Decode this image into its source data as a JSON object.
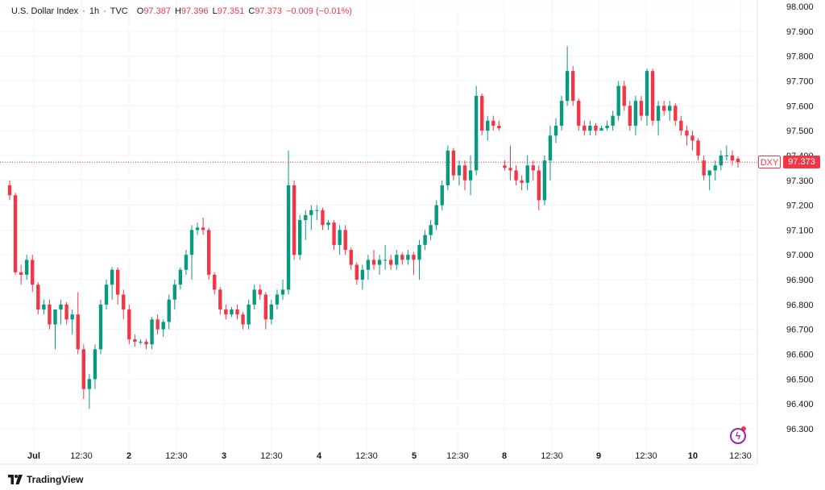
{
  "legend": {
    "symbol": "U.S. Dollar Index",
    "interval": "1h",
    "exchange": "TVC",
    "open_label": "O",
    "open": "97.387",
    "high_label": "H",
    "high": "97.396",
    "low_label": "L",
    "low": "97.351",
    "close_label": "C",
    "close": "97.373",
    "change": "−0.009 (−0.01%)"
  },
  "price_tag": {
    "symbol": "DXY",
    "value": "97.373",
    "numeric": 97.373
  },
  "brand": {
    "name": "TradingView"
  },
  "colors": {
    "up": "#089981",
    "down": "#f23645",
    "grid": "#f0f3fa",
    "text": "#131722"
  },
  "chart_data": {
    "type": "candlestick",
    "ylim": [
      96.22,
      98.0
    ],
    "y_ticks": [
      "98.000",
      "97.900",
      "97.800",
      "97.700",
      "97.600",
      "97.500",
      "97.400",
      "97.300",
      "97.200",
      "97.100",
      "97.000",
      "96.900",
      "96.800",
      "96.700",
      "96.600",
      "96.500",
      "96.400",
      "96.300"
    ],
    "x_ticks": [
      "Jul",
      "12:30",
      "2",
      "12:30",
      "3",
      "12:30",
      "4",
      "12:30",
      "5",
      "12:30",
      "8",
      "12:30",
      "9",
      "12:30",
      "10",
      "12:30"
    ],
    "candles": [
      [
        97.28,
        97.3,
        97.22,
        97.24
      ],
      [
        97.24,
        97.25,
        96.92,
        96.93
      ],
      [
        96.93,
        96.96,
        96.88,
        96.92
      ],
      [
        96.92,
        97.0,
        96.9,
        96.98
      ],
      [
        96.98,
        97.0,
        96.85,
        96.88
      ],
      [
        96.88,
        96.89,
        96.76,
        96.78
      ],
      [
        96.78,
        96.82,
        96.76,
        96.8
      ],
      [
        96.8,
        96.82,
        96.7,
        96.72
      ],
      [
        96.72,
        96.78,
        96.62,
        96.78
      ],
      [
        96.78,
        96.82,
        96.72,
        96.8
      ],
      [
        96.8,
        96.81,
        96.72,
        96.74
      ],
      [
        96.74,
        96.78,
        96.68,
        96.76
      ],
      [
        96.76,
        96.85,
        96.6,
        96.62
      ],
      [
        96.62,
        96.64,
        96.42,
        96.46
      ],
      [
        96.46,
        96.52,
        96.38,
        96.5
      ],
      [
        96.5,
        96.64,
        96.46,
        96.62
      ],
      [
        96.62,
        96.82,
        96.6,
        96.8
      ],
      [
        96.8,
        96.9,
        96.78,
        96.88
      ],
      [
        96.88,
        96.95,
        96.82,
        96.94
      ],
      [
        96.94,
        96.95,
        96.8,
        96.84
      ],
      [
        96.84,
        96.86,
        96.74,
        96.78
      ],
      [
        96.78,
        96.8,
        96.64,
        96.66
      ],
      [
        96.66,
        96.68,
        96.63,
        96.65
      ],
      [
        96.65,
        96.66,
        96.64,
        96.65
      ],
      [
        96.65,
        96.66,
        96.62,
        96.64
      ],
      [
        96.64,
        96.75,
        96.62,
        96.74
      ],
      [
        96.74,
        96.76,
        96.68,
        96.7
      ],
      [
        96.7,
        96.74,
        96.67,
        96.73
      ],
      [
        96.73,
        96.84,
        96.7,
        96.82
      ],
      [
        96.82,
        96.9,
        96.78,
        96.88
      ],
      [
        96.88,
        96.95,
        96.86,
        96.94
      ],
      [
        96.94,
        97.02,
        96.92,
        97.0
      ],
      [
        97.0,
        97.12,
        96.9,
        97.1
      ],
      [
        97.1,
        97.13,
        97.08,
        97.11
      ],
      [
        97.11,
        97.15,
        97.08,
        97.1
      ],
      [
        97.1,
        97.11,
        96.9,
        96.92
      ],
      [
        96.92,
        96.93,
        96.84,
        96.86
      ],
      [
        96.86,
        96.87,
        96.76,
        96.78
      ],
      [
        96.78,
        96.8,
        96.74,
        96.76
      ],
      [
        96.76,
        96.79,
        96.75,
        96.78
      ],
      [
        96.78,
        96.8,
        96.74,
        96.76
      ],
      [
        96.76,
        96.77,
        96.7,
        96.72
      ],
      [
        96.72,
        96.82,
        96.7,
        96.8
      ],
      [
        96.8,
        96.88,
        96.78,
        96.86
      ],
      [
        96.86,
        96.88,
        96.82,
        96.84
      ],
      [
        96.84,
        96.85,
        96.7,
        96.74
      ],
      [
        96.74,
        96.82,
        96.72,
        96.8
      ],
      [
        96.8,
        96.86,
        96.78,
        96.84
      ],
      [
        96.84,
        96.9,
        96.82,
        96.86
      ],
      [
        96.86,
        97.42,
        96.84,
        97.28
      ],
      [
        97.28,
        97.3,
        96.98,
        97.0
      ],
      [
        97.0,
        97.16,
        96.98,
        97.14
      ],
      [
        97.14,
        97.18,
        97.06,
        97.16
      ],
      [
        97.16,
        97.2,
        97.1,
        97.18
      ],
      [
        97.18,
        97.2,
        97.14,
        97.18
      ],
      [
        97.18,
        97.19,
        97.1,
        97.12
      ],
      [
        97.12,
        97.14,
        97.1,
        97.13
      ],
      [
        97.13,
        97.14,
        97.02,
        97.04
      ],
      [
        97.04,
        97.12,
        97.0,
        97.1
      ],
      [
        97.1,
        97.12,
        97.0,
        97.02
      ],
      [
        97.02,
        97.03,
        96.94,
        96.96
      ],
      [
        96.96,
        96.97,
        96.88,
        96.9
      ],
      [
        96.9,
        96.96,
        96.86,
        96.94
      ],
      [
        96.94,
        97.0,
        96.9,
        96.98
      ],
      [
        96.98,
        97.02,
        96.94,
        96.96
      ],
      [
        96.96,
        97.0,
        96.92,
        96.98
      ],
      [
        96.98,
        97.04,
        96.94,
        96.98
      ],
      [
        96.98,
        97.0,
        96.94,
        96.96
      ],
      [
        96.96,
        97.02,
        96.94,
        97.0
      ],
      [
        97.0,
        97.01,
        96.96,
        96.98
      ],
      [
        96.98,
        97.02,
        96.96,
        97.0
      ],
      [
        97.0,
        97.01,
        96.92,
        96.98
      ],
      [
        96.98,
        97.06,
        96.9,
        97.04
      ],
      [
        97.04,
        97.1,
        97.02,
        97.08
      ],
      [
        97.08,
        97.14,
        97.06,
        97.12
      ],
      [
        97.12,
        97.22,
        97.1,
        97.2
      ],
      [
        97.2,
        97.3,
        97.18,
        97.28
      ],
      [
        97.28,
        97.44,
        97.26,
        97.42
      ],
      [
        97.42,
        97.43,
        97.3,
        97.32
      ],
      [
        97.32,
        97.38,
        97.28,
        97.36
      ],
      [
        97.36,
        97.38,
        97.26,
        97.3
      ],
      [
        97.3,
        97.4,
        97.24,
        97.34
      ],
      [
        97.34,
        97.68,
        97.32,
        97.64
      ],
      [
        97.64,
        97.65,
        97.48,
        97.5
      ],
      [
        97.5,
        97.56,
        97.46,
        97.54
      ],
      [
        97.54,
        97.56,
        97.5,
        97.52
      ],
      [
        97.52,
        97.54,
        97.5,
        97.51
      ],
      [
        97.36,
        97.38,
        97.34,
        97.35
      ],
      [
        97.35,
        97.44,
        97.3,
        97.34
      ],
      [
        97.34,
        97.36,
        97.28,
        97.3
      ],
      [
        97.3,
        97.32,
        97.26,
        97.29
      ],
      [
        97.29,
        97.4,
        97.26,
        97.36
      ],
      [
        97.36,
        97.38,
        97.3,
        97.34
      ],
      [
        97.34,
        97.36,
        97.18,
        97.22
      ],
      [
        97.22,
        97.4,
        97.2,
        97.38
      ],
      [
        97.38,
        97.52,
        97.3,
        97.48
      ],
      [
        97.48,
        97.55,
        97.45,
        97.52
      ],
      [
        97.52,
        97.64,
        97.5,
        97.62
      ],
      [
        97.62,
        97.84,
        97.6,
        97.74
      ],
      [
        97.74,
        97.76,
        97.6,
        97.62
      ],
      [
        97.62,
        97.63,
        97.5,
        97.52
      ],
      [
        97.52,
        97.54,
        97.48,
        97.5
      ],
      [
        97.5,
        97.54,
        97.48,
        97.52
      ],
      [
        97.52,
        97.53,
        97.48,
        97.5
      ],
      [
        97.5,
        97.52,
        97.5,
        97.51
      ],
      [
        97.51,
        97.54,
        97.5,
        97.52
      ],
      [
        97.52,
        97.58,
        97.5,
        97.56
      ],
      [
        97.56,
        97.7,
        97.54,
        97.68
      ],
      [
        97.68,
        97.7,
        97.58,
        97.6
      ],
      [
        97.6,
        97.62,
        97.5,
        97.52
      ],
      [
        97.52,
        97.64,
        97.48,
        97.62
      ],
      [
        97.62,
        97.64,
        97.54,
        97.56
      ],
      [
        97.56,
        97.75,
        97.52,
        97.74
      ],
      [
        97.74,
        97.75,
        97.52,
        97.54
      ],
      [
        97.54,
        97.62,
        97.48,
        97.6
      ],
      [
        97.6,
        97.62,
        97.56,
        97.58
      ],
      [
        97.58,
        97.62,
        97.54,
        97.6
      ],
      [
        97.6,
        97.61,
        97.52,
        97.54
      ],
      [
        97.54,
        97.56,
        97.48,
        97.5
      ],
      [
        97.5,
        97.52,
        97.44,
        97.48
      ],
      [
        97.48,
        97.5,
        97.42,
        97.46
      ],
      [
        97.46,
        97.47,
        97.38,
        97.4
      ],
      [
        97.38,
        97.4,
        97.3,
        97.32
      ],
      [
        97.32,
        97.34,
        97.26,
        97.34
      ],
      [
        97.34,
        97.38,
        97.3,
        97.36
      ],
      [
        97.36,
        97.42,
        97.34,
        97.4
      ],
      [
        97.4,
        97.44,
        97.38,
        97.4
      ],
      [
        97.4,
        97.42,
        97.36,
        97.38
      ],
      [
        97.387,
        97.396,
        97.351,
        97.373
      ]
    ]
  }
}
